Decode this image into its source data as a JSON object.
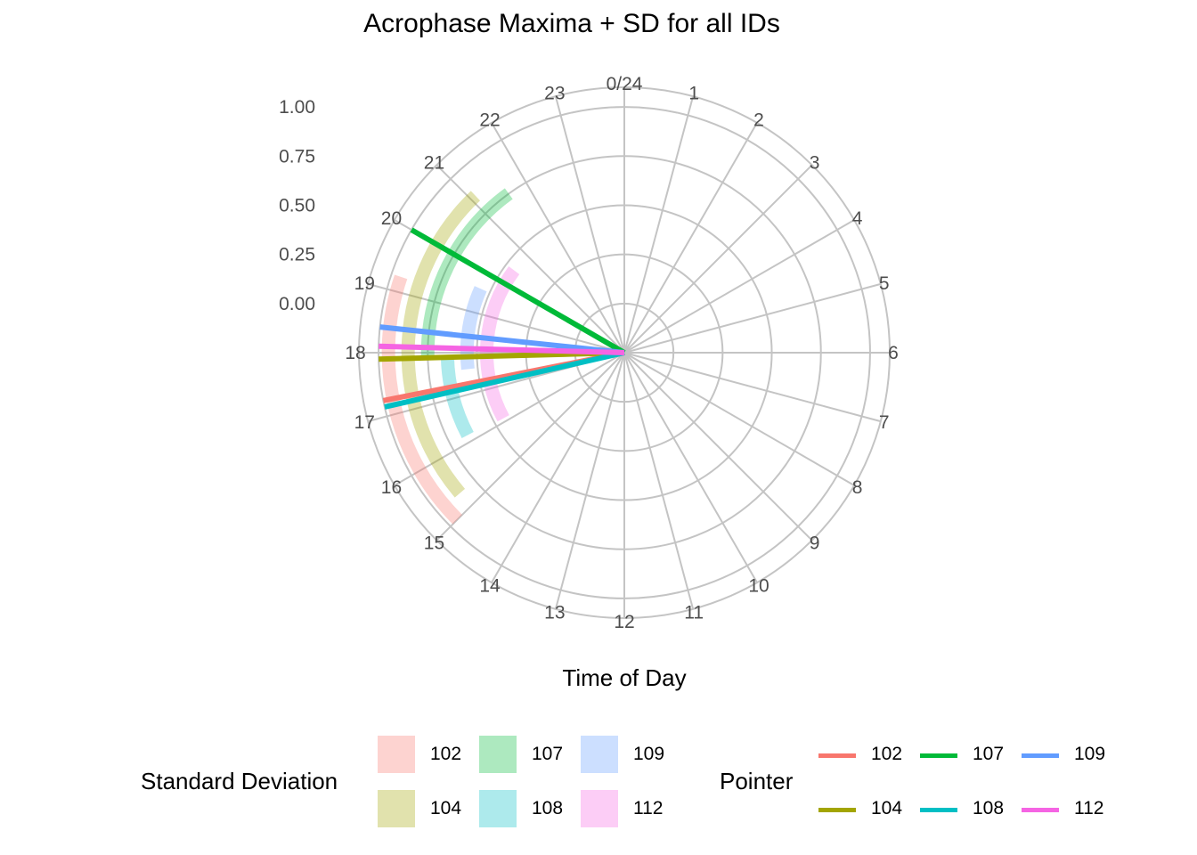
{
  "chart_data": {
    "type": "polar",
    "title": "Acrophase Maxima + SD for all IDs",
    "xlabel": "Time of Day",
    "ylabel": "",
    "angular_ticks": [
      "0/24",
      "1",
      "2",
      "3",
      "4",
      "5",
      "6",
      "7",
      "8",
      "9",
      "10",
      "11",
      "12",
      "13",
      "14",
      "15",
      "16",
      "17",
      "18",
      "19",
      "20",
      "21",
      "22",
      "23"
    ],
    "radial_ticks": [
      "0.00",
      "0.25",
      "0.50",
      "0.75",
      "1.00"
    ],
    "radial_range": [
      -0.25,
      1.1
    ],
    "grid": true,
    "sd_legend_title": "Standard Deviation",
    "pointer_legend_title": "Pointer",
    "series": [
      {
        "name": "102",
        "color": "#F8766D",
        "acrophase": 17.25,
        "sd_start": 15.0,
        "sd_end": 19.25,
        "sd_radius": 0.95
      },
      {
        "name": "104",
        "color": "#A3A500",
        "acrophase": 17.9,
        "sd_start": 15.3,
        "sd_end": 21.1,
        "sd_radius": 0.85
      },
      {
        "name": "107",
        "color": "#00BA38",
        "acrophase": 20.0,
        "sd_start": 17.9,
        "sd_end": 21.6,
        "sd_radius": 0.75
      },
      {
        "name": "108",
        "color": "#00BFC4",
        "acrophase": 17.15,
        "sd_start": 16.15,
        "sd_end": 17.9,
        "sd_radius": 0.65
      },
      {
        "name": "109",
        "color": "#619CFF",
        "acrophase": 18.4,
        "sd_start": 17.6,
        "sd_end": 19.6,
        "sd_radius": 0.55
      },
      {
        "name": "112",
        "color": "#F564E3",
        "acrophase": 18.1,
        "sd_start": 16.1,
        "sd_end": 20.45,
        "sd_radius": 0.45
      }
    ]
  }
}
